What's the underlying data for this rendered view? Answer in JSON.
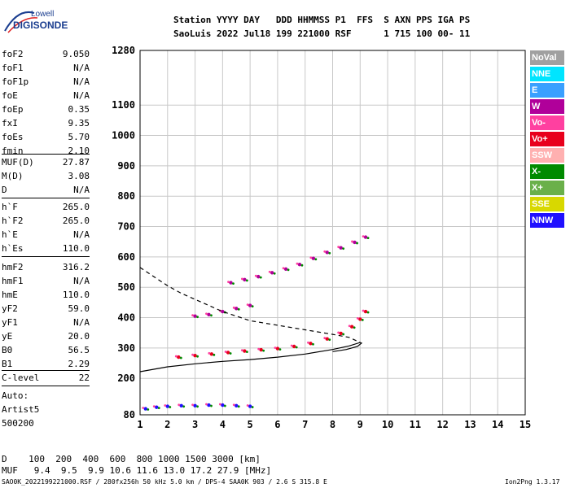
{
  "logo": {
    "line1": "Lowell",
    "line2": "DIGISONDE"
  },
  "header": {
    "line1": "Station YYYY DAY   DDD HHMMSS P1  FFS  S AXN PPS IGA PS",
    "line2": "SaoLuis 2022 Jul18 199 221000 RSF      1 715 100 00- 11"
  },
  "params_group1": [
    {
      "k": "foF2",
      "v": "9.050"
    },
    {
      "k": "foF1",
      "v": "N/A"
    },
    {
      "k": "foF1p",
      "v": "N/A"
    },
    {
      "k": "foE",
      "v": "N/A"
    },
    {
      "k": "foEp",
      "v": "0.35"
    },
    {
      "k": "fxI",
      "v": "9.35"
    },
    {
      "k": "foEs",
      "v": "5.70"
    },
    {
      "k": "fmin",
      "v": "2.10"
    }
  ],
  "params_group2": [
    {
      "k": "MUF(D)",
      "v": "27.87"
    },
    {
      "k": "M(D)",
      "v": "3.08"
    },
    {
      "k": "D",
      "v": "N/A"
    }
  ],
  "params_group3": [
    {
      "k": "h`F",
      "v": "265.0"
    },
    {
      "k": "h`F2",
      "v": "265.0"
    },
    {
      "k": "h`E",
      "v": "N/A"
    },
    {
      "k": "h`Es",
      "v": "110.0"
    }
  ],
  "params_group4": [
    {
      "k": "hmF2",
      "v": "316.2"
    },
    {
      "k": "hmF1",
      "v": "N/A"
    },
    {
      "k": "hmE",
      "v": "110.0"
    },
    {
      "k": "yF2",
      "v": "59.0"
    },
    {
      "k": "yF1",
      "v": "N/A"
    },
    {
      "k": "yE",
      "v": "20.0"
    },
    {
      "k": "B0",
      "v": "56.5"
    },
    {
      "k": "B1",
      "v": "2.29"
    }
  ],
  "params_group5": [
    {
      "k": "C-level",
      "v": "22"
    }
  ],
  "auto": {
    "line1": "Auto:",
    "line2": "Artist5",
    "line3": "500200"
  },
  "legend": [
    {
      "label": "NoVal",
      "color": "#a0a0a0"
    },
    {
      "label": "NNE",
      "color": "#00e5ff"
    },
    {
      "label": "E",
      "color": "#3aa0ff"
    },
    {
      "label": "W",
      "color": "#b0009a"
    },
    {
      "label": "Vo-",
      "color": "#ff40a0"
    },
    {
      "label": "Vo+",
      "color": "#e8001c"
    },
    {
      "label": "SSW",
      "color": "#ffb0b0"
    },
    {
      "label": "X-",
      "color": "#008a00"
    },
    {
      "label": "X+",
      "color": "#6ab04a"
    },
    {
      "label": "SSE",
      "color": "#d8d800"
    },
    {
      "label": "NNW",
      "color": "#2010ff"
    }
  ],
  "footer": {
    "d_line": "D    100  200  400  600  800 1000 1500 3000 [km]",
    "muf_line": "MUF   9.4  9.5  9.9 10.6 11.6 13.0 17.2 27.9 [MHz]",
    "file_line": "SAO0K_2022199221000.RSF / 280fx256h 50 kHz 5.0 km / DPS-4 SAA0K 903 / 2.6 S 315.8 E",
    "version": "Ion2Png 1.3.17"
  },
  "chart_data": {
    "type": "scatter",
    "xlim": [
      1,
      15
    ],
    "ylim": [
      80,
      1280
    ],
    "x_ticks": [
      1,
      2,
      3,
      4,
      5,
      6,
      7,
      8,
      9,
      10,
      11,
      12,
      13,
      14,
      15
    ],
    "y_ticks": [
      80,
      200,
      300,
      400,
      500,
      600,
      700,
      800,
      900,
      1000,
      1100,
      1280
    ],
    "y_tick_labels": [
      "80",
      "200",
      "300",
      "400",
      "500",
      "600",
      "700",
      "800",
      "900",
      "1000",
      "1100",
      "1280"
    ],
    "grid": true,
    "trace_series": [
      {
        "x": [
          2.4,
          3.0,
          3.6,
          4.2,
          4.8,
          5.4,
          6.0,
          6.6,
          7.2,
          7.8,
          8.3,
          8.7,
          9.0,
          9.2
        ],
        "y": [
          270,
          275,
          280,
          285,
          290,
          294,
          298,
          305,
          315,
          330,
          348,
          370,
          395,
          420
        ],
        "color": "#e8001c"
      },
      {
        "x": [
          4.3,
          4.8,
          5.3,
          5.8,
          6.3,
          6.8,
          7.3,
          7.8,
          8.3,
          8.8,
          9.2
        ],
        "y": [
          515,
          525,
          535,
          548,
          560,
          575,
          595,
          615,
          630,
          648,
          665
        ],
        "color": "#b0009a"
      },
      {
        "x": [
          3.0,
          3.5,
          4.0,
          4.5,
          5.0
        ],
        "y": [
          405,
          410,
          420,
          430,
          440
        ],
        "color": "#b0009a"
      },
      {
        "x": [
          1.2,
          1.6,
          2.0,
          2.5,
          3.0,
          3.5,
          4.0,
          4.5,
          5.0
        ],
        "y": [
          100,
          105,
          108,
          110,
          110,
          112,
          112,
          110,
          108
        ],
        "color": "#2010ff"
      }
    ],
    "profile_solid": {
      "x": [
        1.0,
        2.0,
        3.0,
        4.0,
        5.0,
        6.0,
        7.0,
        8.0,
        8.6,
        9.0,
        9.05,
        8.9,
        8.5,
        8.0
      ],
      "y": [
        222,
        238,
        248,
        256,
        262,
        270,
        280,
        295,
        307,
        318,
        316,
        305,
        295,
        288
      ]
    },
    "profile_dashed": {
      "x": [
        1.0,
        1.5,
        2.0,
        2.5,
        3.0,
        3.5,
        4.0,
        4.5,
        5.0,
        6.0,
        7.0,
        8.0,
        8.6,
        9.0
      ],
      "y": [
        565,
        535,
        505,
        480,
        460,
        440,
        420,
        405,
        390,
        375,
        360,
        345,
        335,
        318
      ]
    }
  }
}
